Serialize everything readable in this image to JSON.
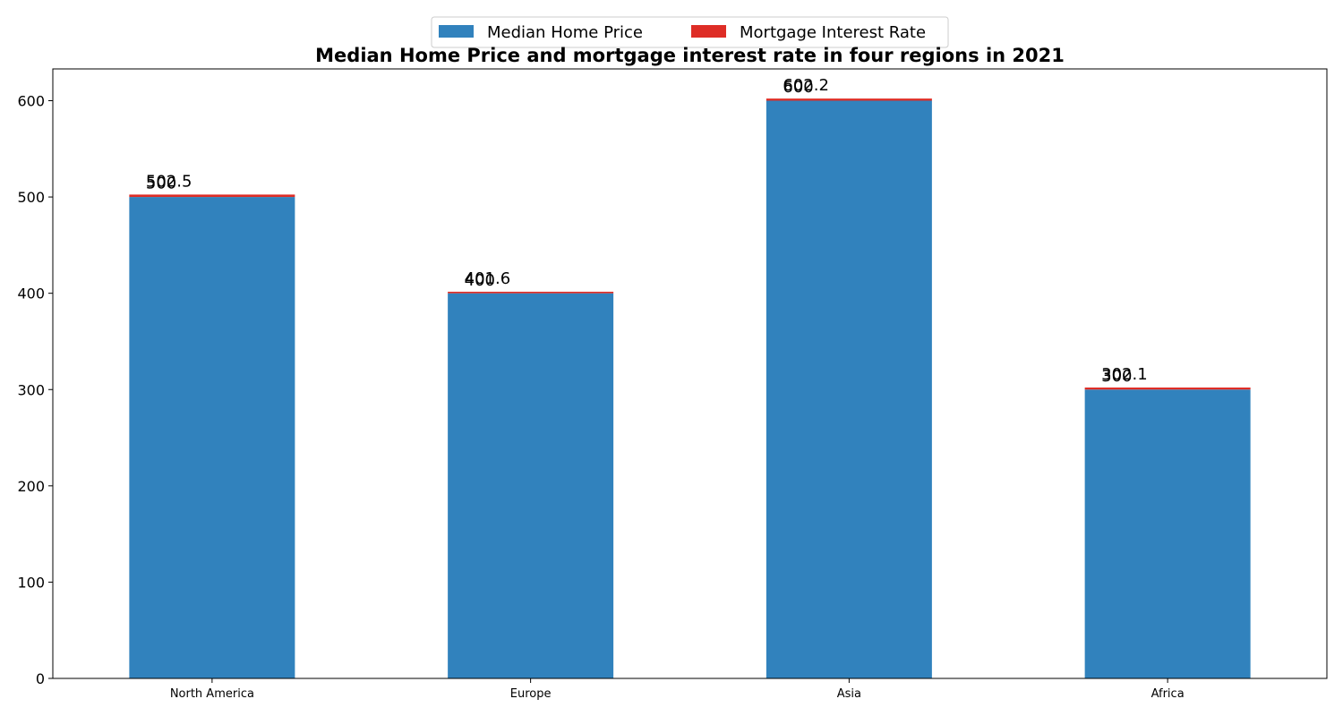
{
  "chart_data": {
    "type": "bar",
    "stacked": true,
    "title": "Median Home Price and mortgage interest rate in four regions in 2021",
    "xlabel": "",
    "ylabel": "",
    "categories": [
      "North America",
      "Europe",
      "Asia",
      "Africa"
    ],
    "series": [
      {
        "name": "Median Home Price",
        "values": [
          500,
          400,
          600,
          300
        ],
        "color": "#3182bd"
      },
      {
        "name": "Mortgage Interest Rate",
        "values": [
          2.5,
          1.6,
          2.2,
          2.1
        ],
        "color": "#de2d26"
      }
    ],
    "base_labels": [
      "500",
      "400",
      "600",
      "300"
    ],
    "total_labels": [
      "502.5",
      "401.6",
      "602.2",
      "302.1"
    ],
    "ylim": [
      0,
      633
    ],
    "yticks": [
      0,
      100,
      200,
      300,
      400,
      500,
      600
    ],
    "grid": false,
    "legend_position": "top-center"
  }
}
